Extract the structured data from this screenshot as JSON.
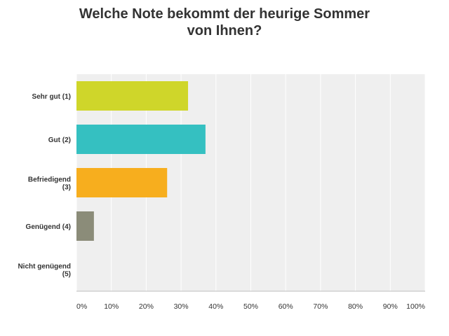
{
  "chart_data": {
    "type": "bar",
    "orientation": "horizontal",
    "title": "Welche Note bekommt der heurige Sommer\nvon Ihnen?",
    "categories": [
      "Sehr gut (1)",
      "Gut (2)",
      "Befriedigend (3)",
      "Genügend (4)",
      "Nicht genügend (5)"
    ],
    "values": [
      32,
      37,
      26,
      5,
      0
    ],
    "colors": [
      "#cfd62a",
      "#35c0c1",
      "#f7ae1e",
      "#8b8c79",
      "#9b9b9b"
    ],
    "xlim": [
      0,
      100
    ],
    "xticks": [
      "0%",
      "10%",
      "20%",
      "30%",
      "40%",
      "50%",
      "60%",
      "70%",
      "80%",
      "90%",
      "100%"
    ],
    "grid": true,
    "background": "#efefef",
    "legend": "none"
  }
}
